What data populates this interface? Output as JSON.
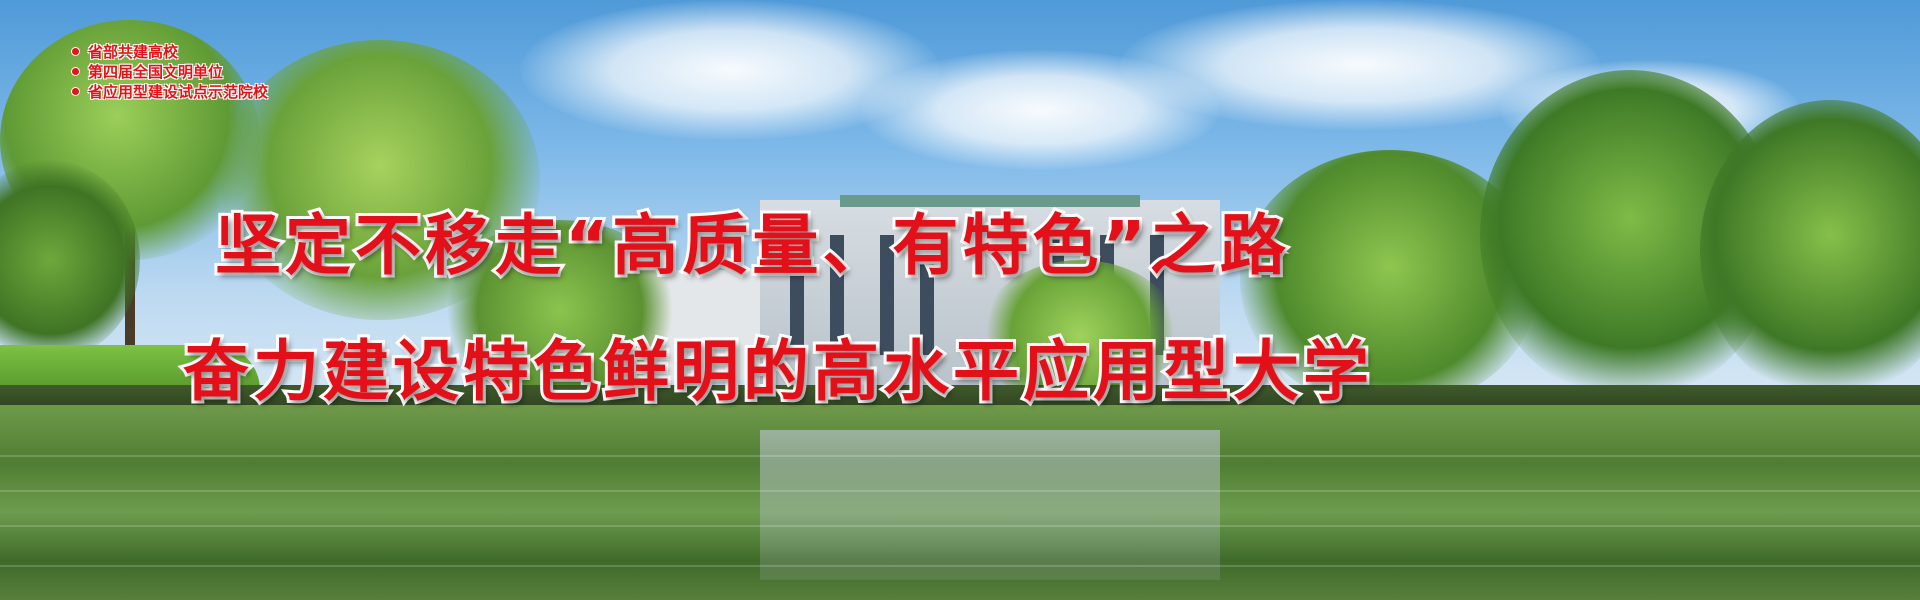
{
  "banner": {
    "honors": [
      "省部共建高校",
      "第四届全国文明单位",
      "省应用型建设试点示范院校"
    ],
    "slogan": {
      "line1": "坚定不移走“高质量、有特色”之路",
      "line2": "奋力建设特色鲜明的高水平应用型大学"
    },
    "colors": {
      "slogan_text": "#e3101a",
      "slogan_outline": "#ffffff",
      "honor_text": "#e0151a"
    }
  }
}
